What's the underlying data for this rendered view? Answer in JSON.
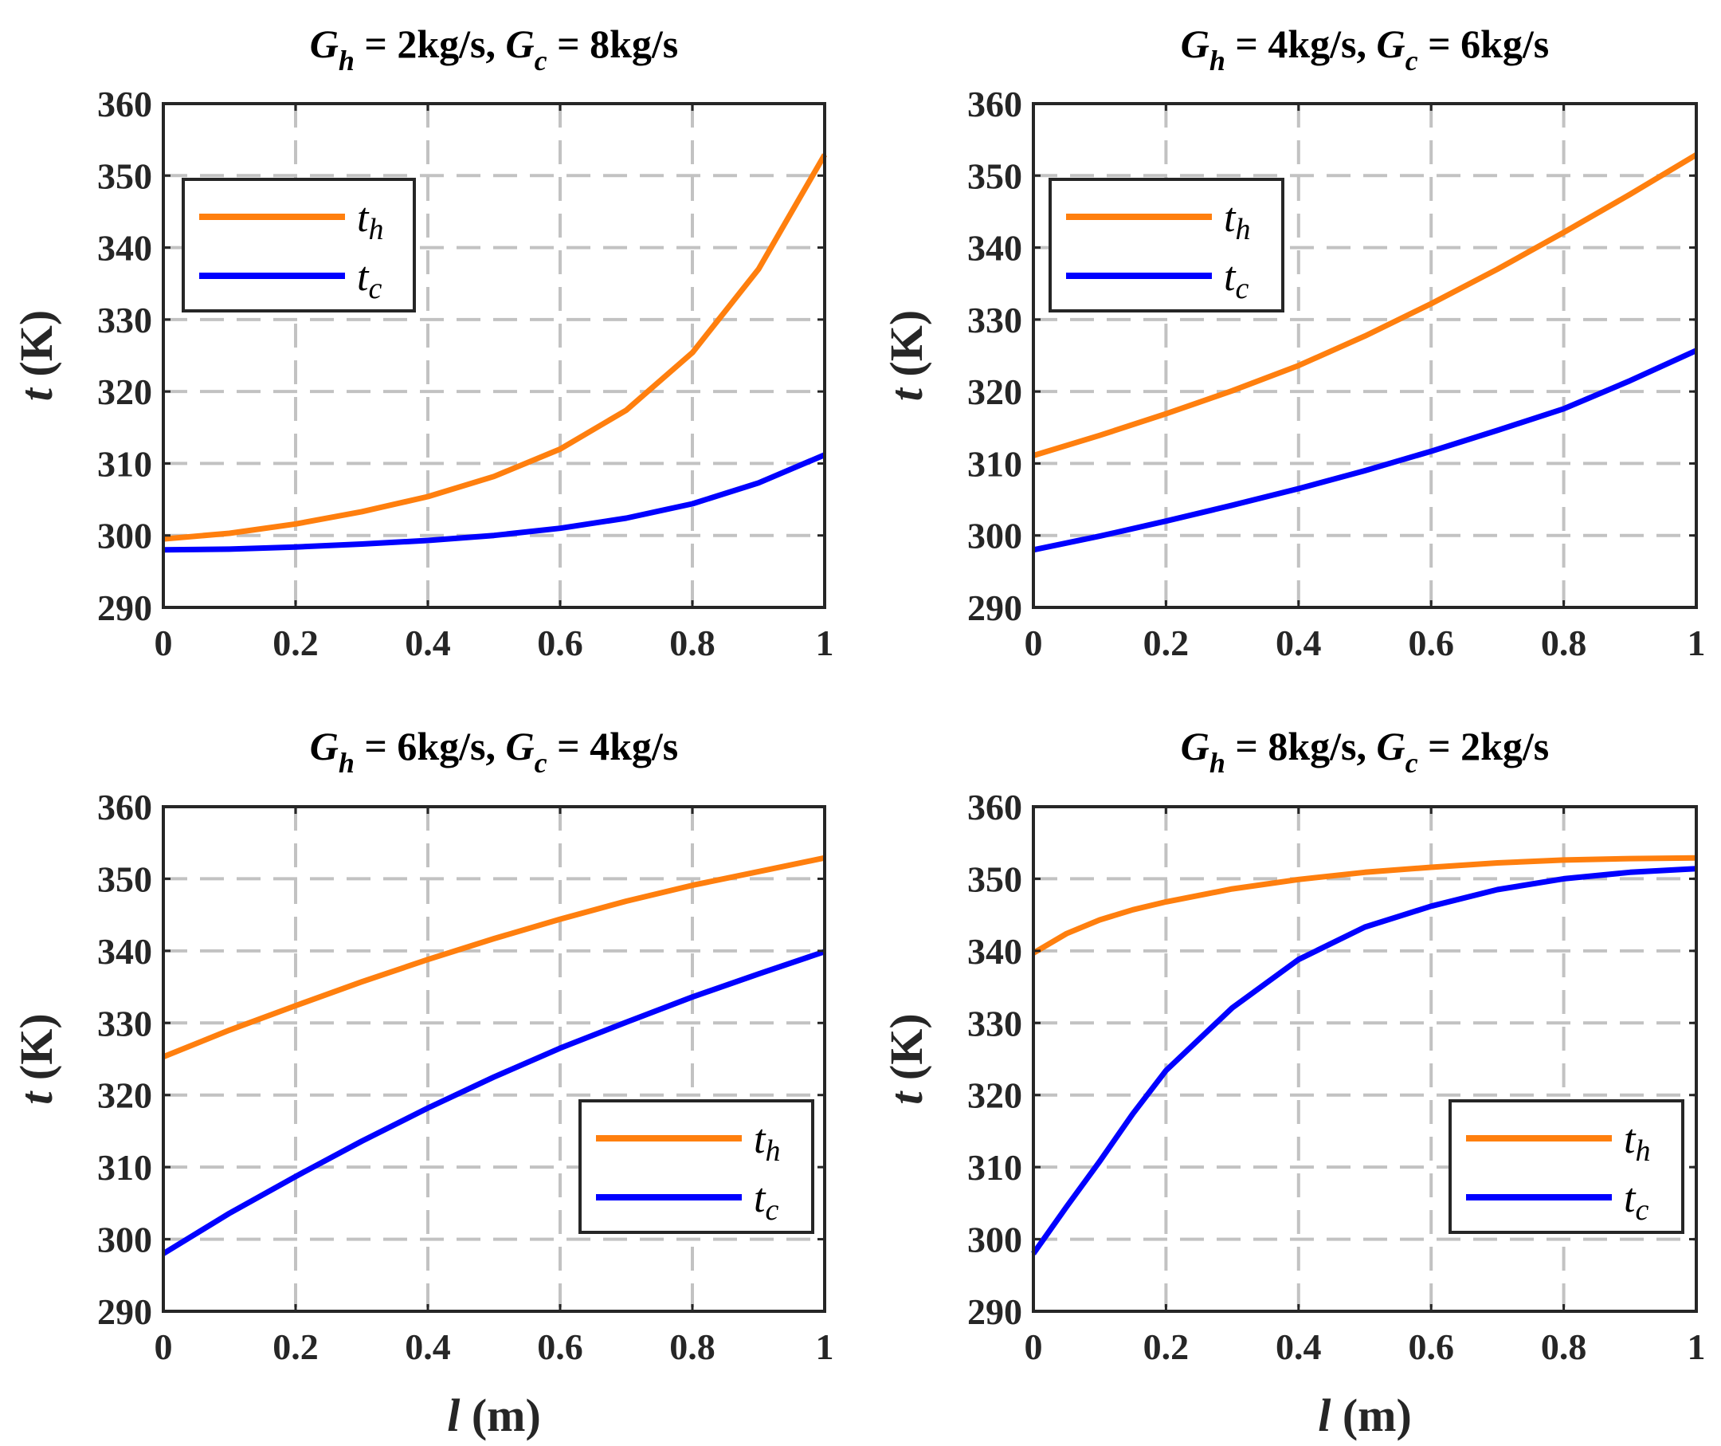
{
  "figure": {
    "y_axis_label_symbol": "t",
    "y_axis_label_unit": " (K)",
    "x_axis_label_symbol": "l",
    "x_axis_label_unit": " (m)"
  },
  "chart_data": [
    {
      "type": "line",
      "title": "G_h = 2kg/s, G_c = 8kg/s",
      "title_parts": {
        "sym1": "G",
        "sub1": "h",
        "mid": " = 2kg/s, ",
        "sym2": "G",
        "sub2": "c",
        "end": " = 8kg/s"
      },
      "xlabel": "",
      "ylabel": "t (K)",
      "xlim": [
        0,
        1
      ],
      "ylim": [
        290,
        360
      ],
      "xticks": [
        "0",
        "0.2",
        "0.4",
        "0.6",
        "0.8",
        "1"
      ],
      "yticks": [
        "290",
        "300",
        "310",
        "320",
        "330",
        "340",
        "350",
        "360"
      ],
      "grid": true,
      "legend_position": "top-left",
      "x": [
        0,
        0.1,
        0.2,
        0.3,
        0.4,
        0.5,
        0.6,
        0.7,
        0.8,
        0.9,
        1.0
      ],
      "series": [
        {
          "name": "t_h",
          "label": "t",
          "sub": "h",
          "color": "#ff7f0e",
          "values": [
            299.5,
            300.3,
            301.6,
            303.3,
            305.4,
            308.2,
            312.0,
            317.4,
            325.4,
            337.0,
            352.9
          ]
        },
        {
          "name": "t_c",
          "label": "t",
          "sub": "c",
          "color": "#0000ff",
          "values": [
            298.0,
            298.1,
            298.4,
            298.8,
            299.3,
            300.0,
            301.0,
            302.4,
            304.4,
            307.3,
            311.2
          ]
        }
      ]
    },
    {
      "type": "line",
      "title": "G_h = 4kg/s, G_c = 6kg/s",
      "title_parts": {
        "sym1": "G",
        "sub1": "h",
        "mid": " = 4kg/s, ",
        "sym2": "G",
        "sub2": "c",
        "end": " = 6kg/s"
      },
      "xlabel": "",
      "ylabel": "t (K)",
      "xlim": [
        0,
        1
      ],
      "ylim": [
        290,
        360
      ],
      "xticks": [
        "0",
        "0.2",
        "0.4",
        "0.6",
        "0.8",
        "1"
      ],
      "yticks": [
        "290",
        "300",
        "310",
        "320",
        "330",
        "340",
        "350",
        "360"
      ],
      "grid": true,
      "legend_position": "top-left",
      "x": [
        0,
        0.1,
        0.2,
        0.3,
        0.4,
        0.5,
        0.6,
        0.7,
        0.8,
        0.9,
        1.0
      ],
      "series": [
        {
          "name": "t_h",
          "label": "t",
          "sub": "h",
          "color": "#ff7f0e",
          "values": [
            311.1,
            313.9,
            316.9,
            320.1,
            323.6,
            327.7,
            332.2,
            337.0,
            342.1,
            347.4,
            352.9
          ]
        },
        {
          "name": "t_c",
          "label": "t",
          "sub": "c",
          "color": "#0000ff",
          "values": [
            298.0,
            299.9,
            302.0,
            304.2,
            306.5,
            309.0,
            311.7,
            314.6,
            317.6,
            321.5,
            325.7
          ]
        }
      ]
    },
    {
      "type": "line",
      "title": "G_h = 6kg/s, G_c = 4kg/s",
      "title_parts": {
        "sym1": "G",
        "sub1": "h",
        "mid": " = 6kg/s, ",
        "sym2": "G",
        "sub2": "c",
        "end": " = 4kg/s"
      },
      "xlabel": "l (m)",
      "ylabel": "t (K)",
      "xlim": [
        0,
        1
      ],
      "ylim": [
        290,
        360
      ],
      "xticks": [
        "0",
        "0.2",
        "0.4",
        "0.6",
        "0.8",
        "1"
      ],
      "yticks": [
        "290",
        "300",
        "310",
        "320",
        "330",
        "340",
        "350",
        "360"
      ],
      "grid": true,
      "legend_position": "bottom-right",
      "x": [
        0,
        0.1,
        0.2,
        0.3,
        0.4,
        0.5,
        0.6,
        0.7,
        0.8,
        0.9,
        1.0
      ],
      "series": [
        {
          "name": "t_h",
          "label": "t",
          "sub": "h",
          "color": "#ff7f0e",
          "values": [
            325.3,
            329.0,
            332.4,
            335.7,
            338.8,
            341.7,
            344.4,
            346.9,
            349.1,
            351.0,
            352.9
          ]
        },
        {
          "name": "t_c",
          "label": "t",
          "sub": "c",
          "color": "#0000ff",
          "values": [
            298.0,
            303.6,
            308.7,
            313.6,
            318.2,
            322.5,
            326.5,
            330.1,
            333.6,
            336.8,
            339.9
          ]
        }
      ]
    },
    {
      "type": "line",
      "title": "G_h = 8kg/s, G_c = 2kg/s",
      "title_parts": {
        "sym1": "G",
        "sub1": "h",
        "mid": " = 8kg/s, ",
        "sym2": "G",
        "sub2": "c",
        "end": " = 2kg/s"
      },
      "xlabel": "l (m)",
      "ylabel": "t (K)",
      "xlim": [
        0,
        1
      ],
      "ylim": [
        290,
        360
      ],
      "xticks": [
        "0",
        "0.2",
        "0.4",
        "0.6",
        "0.8",
        "1"
      ],
      "yticks": [
        "290",
        "300",
        "310",
        "320",
        "330",
        "340",
        "350",
        "360"
      ],
      "grid": true,
      "legend_position": "bottom-right",
      "x": [
        0,
        0.05,
        0.1,
        0.15,
        0.2,
        0.3,
        0.4,
        0.5,
        0.6,
        0.7,
        0.8,
        0.9,
        1.0
      ],
      "series": [
        {
          "name": "t_h",
          "label": "t",
          "sub": "h",
          "color": "#ff7f0e",
          "values": [
            339.7,
            342.4,
            344.3,
            345.7,
            346.8,
            348.6,
            349.9,
            350.9,
            351.6,
            352.2,
            352.6,
            352.8,
            352.9
          ]
        },
        {
          "name": "t_c",
          "label": "t",
          "sub": "c",
          "color": "#0000ff",
          "values": [
            298.0,
            304.5,
            310.8,
            317.4,
            323.4,
            332.1,
            338.8,
            343.3,
            346.2,
            348.5,
            350.0,
            350.9,
            351.4
          ]
        }
      ]
    }
  ]
}
